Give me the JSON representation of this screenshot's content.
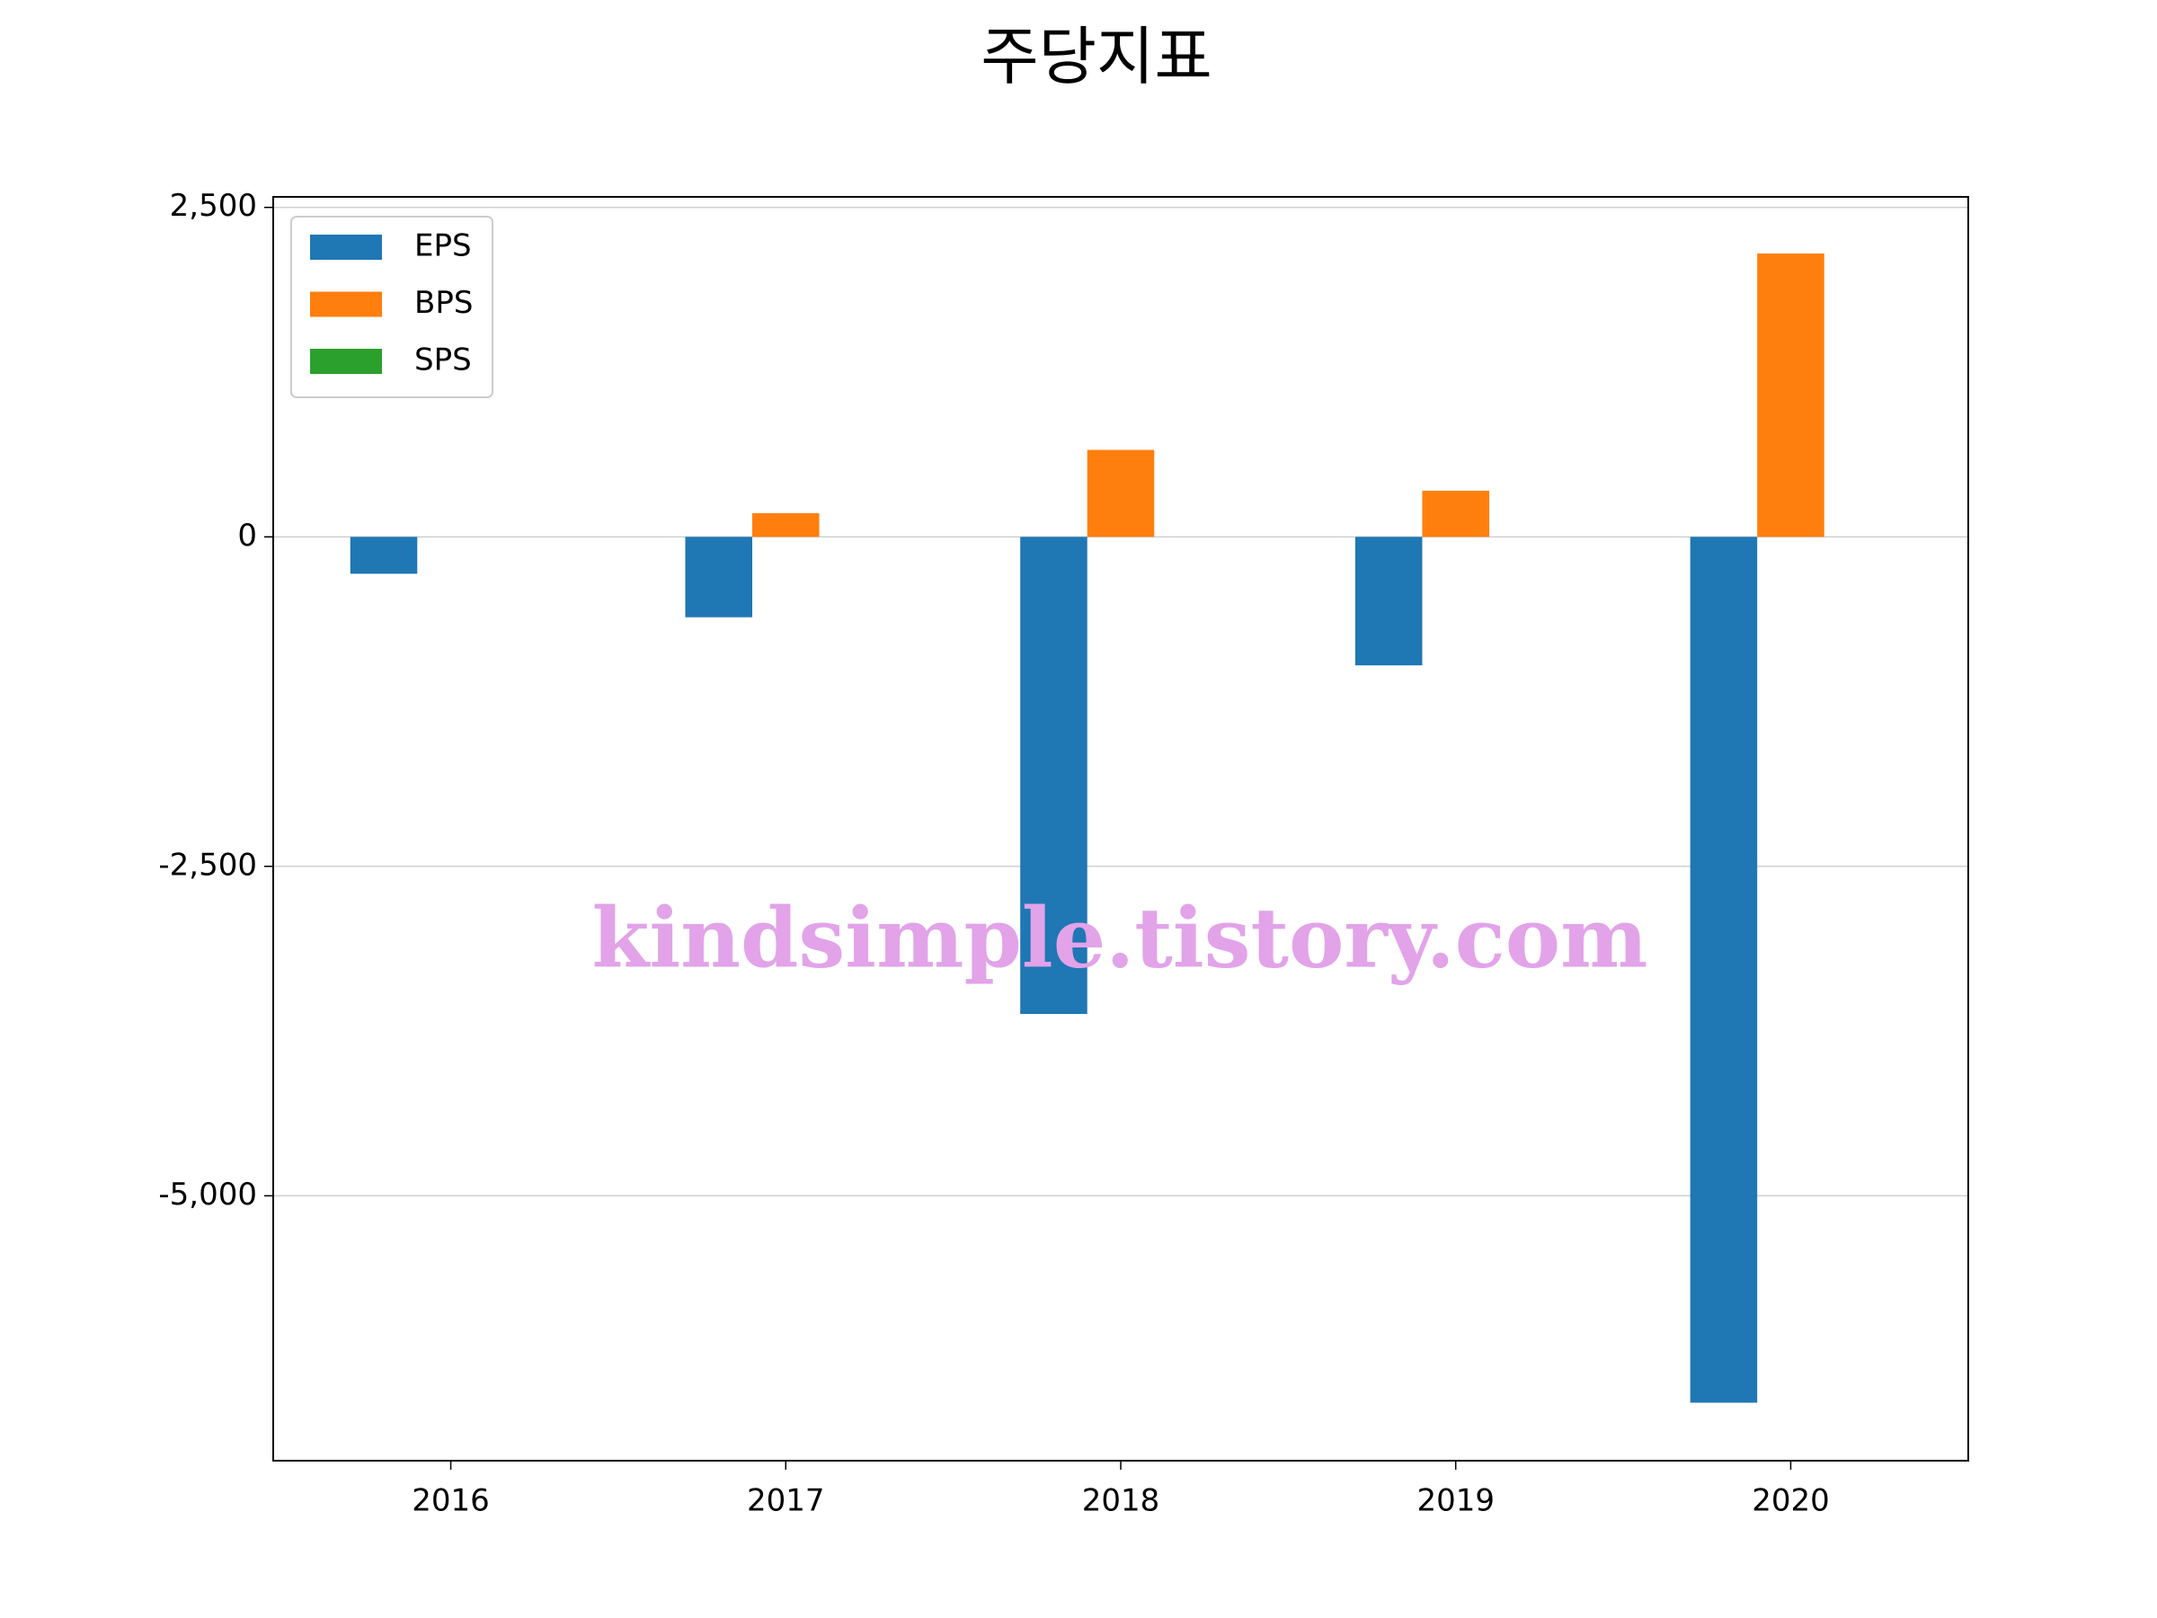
{
  "chart_data": {
    "type": "bar",
    "title": "주당지표",
    "categories": [
      "2016",
      "2017",
      "2018",
      "2019",
      "2020"
    ],
    "series": [
      {
        "name": "EPS",
        "color": "#1f77b4",
        "values": [
          -280,
          -610,
          -3620,
          -975,
          -6570
        ]
      },
      {
        "name": "BPS",
        "color": "#ff7f0e",
        "values": [
          null,
          180,
          660,
          350,
          2150
        ]
      },
      {
        "name": "SPS",
        "color": "#2ca02c",
        "values": [
          null,
          null,
          null,
          null,
          null
        ]
      }
    ],
    "ylim": [
      -7010,
      2580
    ],
    "yticks": [
      {
        "value": -5000,
        "label": "-5,000"
      },
      {
        "value": -2500,
        "label": "-2,500"
      },
      0,
      {
        "value": 2500,
        "label": "2,500"
      }
    ],
    "grid": true,
    "legend": "upper left",
    "watermark": "kindsimple.tistory.com"
  }
}
